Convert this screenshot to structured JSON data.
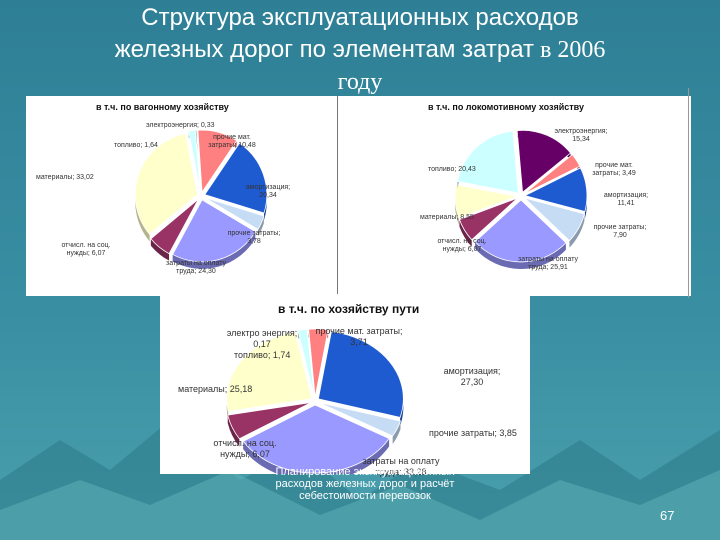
{
  "slide": {
    "title_line1": "Структура эксплуатационных расходов",
    "title_line2": "железных дорог по элементам затрат",
    "title_line2_suffix": " в 2006",
    "title_line3": "году",
    "footer": "Планирование эксплуатациионных расходов железных дорог и расчёт себестоимости перевозок",
    "page_number": "67"
  },
  "chart_data": [
    {
      "type": "pie",
      "id": "wagon",
      "title": "в т.ч. по вагонному хозяйству",
      "slices": [
        {
          "label": "электроэнергия; 0,33",
          "value": 0.33,
          "color": "#7f7f7f"
        },
        {
          "label": "прочие мат. затраты; 10,48",
          "value": 10.48,
          "color": "#ff8080"
        },
        {
          "label": "амортизация; 20,34",
          "value": 20.34,
          "color": "#1f5bd0"
        },
        {
          "label": "прочие затраты; 3,78",
          "value": 3.78,
          "color": "#c6dcf5"
        },
        {
          "label": "затраты на оплату труда; 24,30",
          "value": 24.3,
          "color": "#9999ff"
        },
        {
          "label": "отчисл. на соц. нужды; 6,07",
          "value": 6.07,
          "color": "#993366"
        },
        {
          "label": "материалы; 33,02",
          "value": 33.02,
          "color": "#ffffcc"
        },
        {
          "label": "топливо; 1,64",
          "value": 1.64,
          "color": "#ccffff"
        }
      ]
    },
    {
      "type": "pie",
      "id": "loco",
      "title": "в т.ч. по локомотивному хозяйству",
      "slices": [
        {
          "label": "электроэнергия; 15,34",
          "value": 15.34,
          "color": "#660066"
        },
        {
          "label": "прочие мат. затраты; 3,49",
          "value": 3.49,
          "color": "#ff8080"
        },
        {
          "label": "амортизация; 11,41",
          "value": 11.41,
          "color": "#1f5bd0"
        },
        {
          "label": "прочие затраты; 7,90",
          "value": 7.9,
          "color": "#c6dcf5"
        },
        {
          "label": "затраты на оплату труда; 25,91",
          "value": 25.91,
          "color": "#9999ff"
        },
        {
          "label": "отчисл. на соц. нужды; 6,07",
          "value": 6.07,
          "color": "#993366"
        },
        {
          "label": "материалы; 8,55",
          "value": 8.55,
          "color": "#ffffcc"
        },
        {
          "label": "топливо; 20,43",
          "value": 20.43,
          "color": "#ccffff"
        }
      ]
    },
    {
      "type": "pie",
      "id": "track",
      "title": "в т.ч. по хозяйству пути",
      "slices": [
        {
          "label": "электро энергия; 0,17",
          "value": 0.17,
          "color": "#7f7f7f"
        },
        {
          "label": "прочие мат. затраты; 3,71",
          "value": 3.71,
          "color": "#ff8080"
        },
        {
          "label": "амортизация; 27,30",
          "value": 27.3,
          "color": "#1f5bd0"
        },
        {
          "label": "прочие затраты; 3,85",
          "value": 3.85,
          "color": "#c6dcf5"
        },
        {
          "label": "затраты на оплату труда; 33,28",
          "value": 33.28,
          "color": "#9999ff"
        },
        {
          "label": "отчисл. на соц. нужды; 6,07",
          "value": 6.07,
          "color": "#993366"
        },
        {
          "label": "материалы; 25,18",
          "value": 25.18,
          "color": "#ffffcc"
        },
        {
          "label": "топливо; 1,74",
          "value": 1.74,
          "color": "#ccffff"
        }
      ]
    }
  ],
  "colors": {
    "background": "#3f8ea0",
    "title_text": "#ffffff"
  }
}
